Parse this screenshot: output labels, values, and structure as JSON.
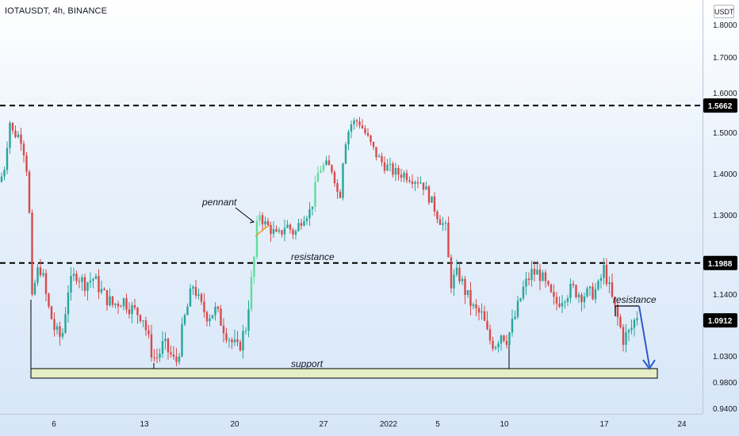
{
  "title": "IOTAUSDT, 4h, BINANCE",
  "currency": "USDT",
  "colors": {
    "up": "#26a69a",
    "up_light": "#5fdc9b",
    "down": "#d84a4a",
    "line": "#000000",
    "support_fill": "#e5eec6",
    "arrow": "#2b58c8",
    "pennant": "#f0a030"
  },
  "chart_data": {
    "type": "candlestick",
    "symbol": "IOTAUSDT",
    "interval": "4h",
    "exchange": "BINANCE",
    "y_axis": {
      "ticks": [
        "1.8000",
        "1.7000",
        "1.6000",
        "1.5000",
        "1.4000",
        "1.3000",
        "1.2000",
        "1.1400",
        "1.0300",
        "0.9800",
        "0.9400"
      ],
      "values": [
        1.8,
        1.7,
        1.6,
        1.5,
        1.4,
        1.3,
        1.2,
        1.14,
        1.03,
        0.98,
        0.94
      ],
      "range": [
        0.93,
        1.86
      ]
    },
    "x_axis": {
      "ticks": [
        "6",
        "13",
        "20",
        "27",
        "2022",
        "5",
        "10",
        "17",
        "24"
      ]
    },
    "price_labels": [
      {
        "value": 1.5662,
        "text": "1.5662"
      },
      {
        "value": 1.1988,
        "text": "1.1988"
      },
      {
        "value": 1.0912,
        "text": "1.0912"
      }
    ],
    "annotations": {
      "pennant": "pennant",
      "resistance_mid": "resistance",
      "resistance_right": "resistance",
      "support": "support"
    },
    "legend": "none",
    "grid": false
  }
}
